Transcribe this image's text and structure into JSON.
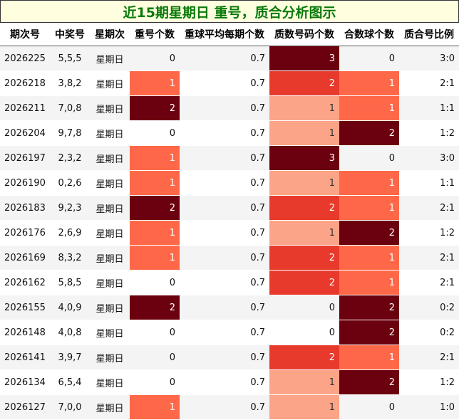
{
  "title": "近15期星期日 重号，质合分析图示",
  "columns": [
    "期次号",
    "中奖号",
    "星期次",
    "重号个数",
    "重球平均每期个数",
    "质数号码个数",
    "合数球个数",
    "质合号比例"
  ],
  "rows": [
    {
      "issue": "2026225",
      "draw": "5,5,5",
      "weekday": "星期日",
      "repeat": "0",
      "avg": "0.7",
      "prime": "3",
      "composite": "0",
      "ratio": "3:0"
    },
    {
      "issue": "2026218",
      "draw": "3,8,2",
      "weekday": "星期日",
      "repeat": "1",
      "avg": "0.7",
      "prime": "2",
      "composite": "1",
      "ratio": "2:1"
    },
    {
      "issue": "2026211",
      "draw": "7,0,8",
      "weekday": "星期日",
      "repeat": "2",
      "avg": "0.7",
      "prime": "1",
      "composite": "1",
      "ratio": "1:1"
    },
    {
      "issue": "2026204",
      "draw": "9,7,8",
      "weekday": "星期日",
      "repeat": "0",
      "avg": "0.7",
      "prime": "1",
      "composite": "2",
      "ratio": "1:2"
    },
    {
      "issue": "2026197",
      "draw": "2,3,2",
      "weekday": "星期日",
      "repeat": "1",
      "avg": "0.7",
      "prime": "3",
      "composite": "0",
      "ratio": "3:0"
    },
    {
      "issue": "2026190",
      "draw": "0,2,6",
      "weekday": "星期日",
      "repeat": "1",
      "avg": "0.7",
      "prime": "1",
      "composite": "1",
      "ratio": "1:1"
    },
    {
      "issue": "2026183",
      "draw": "9,2,3",
      "weekday": "星期日",
      "repeat": "2",
      "avg": "0.7",
      "prime": "2",
      "composite": "1",
      "ratio": "2:1"
    },
    {
      "issue": "2026176",
      "draw": "2,6,9",
      "weekday": "星期日",
      "repeat": "1",
      "avg": "0.7",
      "prime": "1",
      "composite": "2",
      "ratio": "1:2"
    },
    {
      "issue": "2026169",
      "draw": "8,3,2",
      "weekday": "星期日",
      "repeat": "1",
      "avg": "0.7",
      "prime": "2",
      "composite": "1",
      "ratio": "2:1"
    },
    {
      "issue": "2026162",
      "draw": "5,8,5",
      "weekday": "星期日",
      "repeat": "0",
      "avg": "0.7",
      "prime": "2",
      "composite": "1",
      "ratio": "2:1"
    },
    {
      "issue": "2026155",
      "draw": "4,0,9",
      "weekday": "星期日",
      "repeat": "2",
      "avg": "0.7",
      "prime": "0",
      "composite": "2",
      "ratio": "0:2"
    },
    {
      "issue": "2026148",
      "draw": "4,0,8",
      "weekday": "星期日",
      "repeat": "0",
      "avg": "0.7",
      "prime": "0",
      "composite": "2",
      "ratio": "0:2"
    },
    {
      "issue": "2026141",
      "draw": "3,9,7",
      "weekday": "星期日",
      "repeat": "0",
      "avg": "0.7",
      "prime": "2",
      "composite": "1",
      "ratio": "2:1"
    },
    {
      "issue": "2026134",
      "draw": "6,5,4",
      "weekday": "星期日",
      "repeat": "0",
      "avg": "0.7",
      "prime": "1",
      "composite": "2",
      "ratio": "1:2"
    },
    {
      "issue": "2026127",
      "draw": "7,0,0",
      "weekday": "星期日",
      "repeat": "1",
      "avg": "0.7",
      "prime": "1",
      "composite": "0",
      "ratio": "1:0"
    }
  ],
  "colors": {
    "title_text": "#0a7a0a",
    "title_bg": "#ffffe0",
    "heat_light": "#fca487",
    "heat_mid": "#fe6848",
    "heat_strong": "#e83a2c",
    "heat_max": "#6b000e"
  }
}
